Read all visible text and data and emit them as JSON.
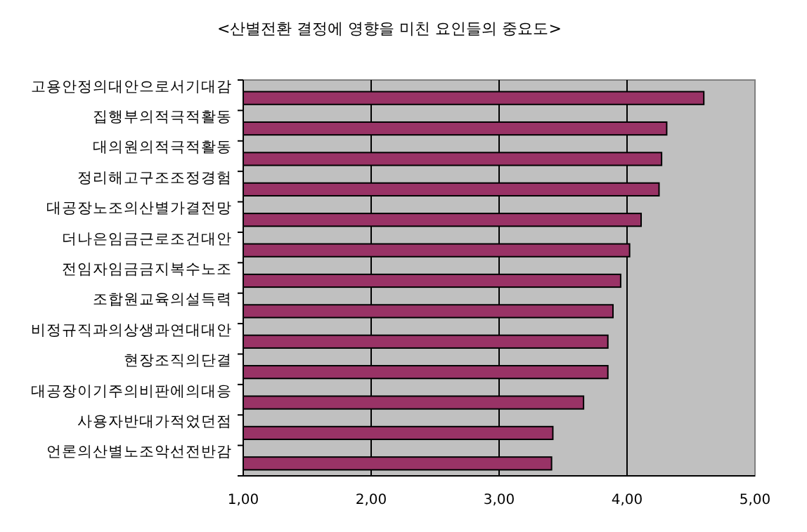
{
  "chart_data": {
    "type": "bar",
    "orientation": "horizontal",
    "title": "<산별전환 결정에 영향을 미친 요인들의 중요도>",
    "categories": [
      "고용안정의대안으로서기대감",
      "집행부의적극적활동",
      "대의원의적극적활동",
      "정리해고구조조정경험",
      "대공장노조의산별가결전망",
      "더나은임금근로조건대안",
      "전임자임금금지복수노조",
      "조합원교육의설득력",
      "비정규직과의상생과연대대안",
      "현장조직의단결",
      "대공장이기주의비판에의대응",
      "사용자반대가적었던점",
      "언론의산별노조악선전반감"
    ],
    "values": [
      4.6,
      4.31,
      4.27,
      4.25,
      4.11,
      4.02,
      3.95,
      3.89,
      3.85,
      3.85,
      3.66,
      3.42,
      3.41
    ],
    "color": "#993366",
    "xlim": [
      1,
      5
    ],
    "xticks": [
      {
        "value": 1,
        "label": "1,00"
      },
      {
        "value": 2,
        "label": "2,00"
      },
      {
        "value": 3,
        "label": "3,00"
      },
      {
        "value": 4,
        "label": "4,00"
      },
      {
        "value": 5,
        "label": "5,00"
      }
    ],
    "grid": "x"
  }
}
